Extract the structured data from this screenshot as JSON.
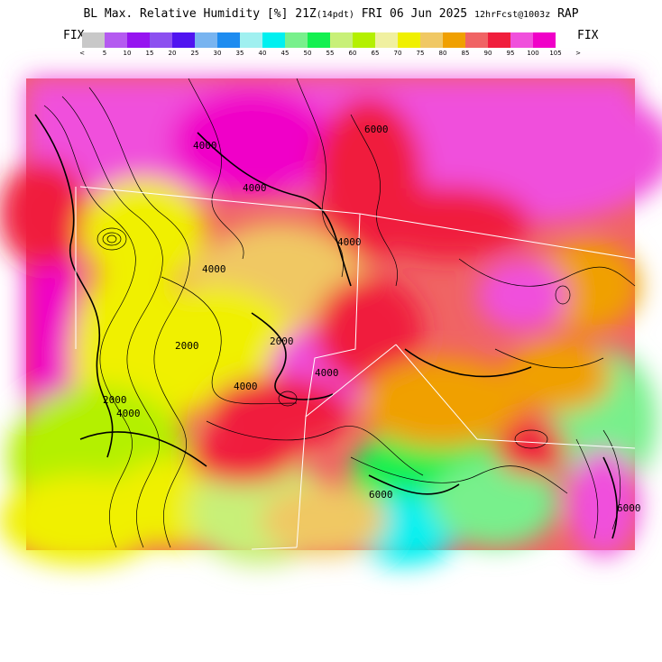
{
  "header": {
    "title_main": "BL Max. Relative Humidity [%] 21Z",
    "title_small_1": "(14pdt)",
    "title_date": "FRI 06 Jun 2025",
    "title_small_2": "12hrFcst@1003z",
    "title_model": "RAP"
  },
  "legend": {
    "fix_left": "FIX",
    "fix_right": "FIX",
    "colors": [
      "#c8c8c8",
      "#b45af0",
      "#9614f0",
      "#8c50f0",
      "#5014f0",
      "#78b4f0",
      "#1e8cf0",
      "#a0f0f0",
      "#00f0f0",
      "#78f08c",
      "#14f050",
      "#c8f078",
      "#b4f000",
      "#f0f0a0",
      "#f0f000",
      "#f0c864",
      "#f0a000",
      "#f06464",
      "#f01e3c",
      "#f050dc",
      "#f000c8"
    ],
    "tick_labels": [
      "<",
      "5",
      "10",
      "15",
      "20",
      "25",
      "30",
      "35",
      "40",
      "45",
      "50",
      "55",
      "60",
      "65",
      "70",
      "75",
      "80",
      "85",
      "90",
      "95",
      "100",
      "105",
      ">"
    ]
  },
  "map": {
    "contour_labels": [
      {
        "text": "4000"
      },
      {
        "text": "4000"
      },
      {
        "text": "6000"
      },
      {
        "text": "4000"
      },
      {
        "text": "2000"
      },
      {
        "text": "4000"
      },
      {
        "text": "2000"
      },
      {
        "text": "4000"
      },
      {
        "text": "4000"
      },
      {
        "text": "2000"
      },
      {
        "text": "4000"
      },
      {
        "text": "6000"
      },
      {
        "text": "6000"
      }
    ]
  }
}
